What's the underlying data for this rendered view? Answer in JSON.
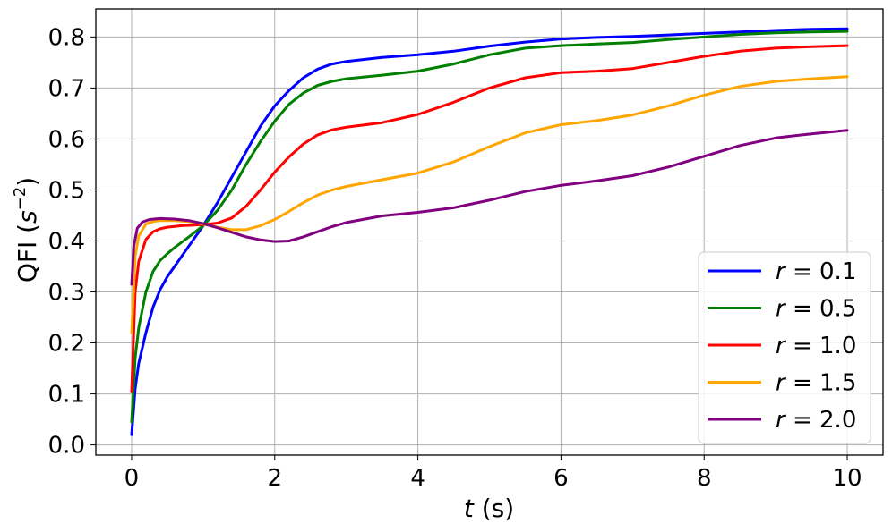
{
  "chart_data": {
    "type": "line",
    "xlabel_var": "t",
    "xlabel_unit": " (s)",
    "ylabel_pre": "QFI (",
    "ylabel_var": "s",
    "ylabel_sup": "−2",
    "ylabel_post": ")",
    "xlim": [
      -0.5,
      10.5
    ],
    "ylim": [
      -0.02,
      0.855
    ],
    "x_ticks": [
      0,
      2,
      4,
      6,
      8,
      10
    ],
    "x_tick_labels": [
      "0",
      "2",
      "4",
      "6",
      "8",
      "10"
    ],
    "y_ticks": [
      0.0,
      0.1,
      0.2,
      0.3,
      0.4,
      0.5,
      0.6,
      0.7,
      0.8
    ],
    "y_tick_labels": [
      "0.0",
      "0.1",
      "0.2",
      "0.3",
      "0.4",
      "0.5",
      "0.6",
      "0.7",
      "0.8"
    ],
    "grid": true,
    "legend_position": "bottom-right",
    "series": [
      {
        "name": "r = 0.1",
        "legend_var": "r",
        "legend_value": "= 0.1",
        "color": "#0000ff",
        "points": [
          [
            0,
            0.02
          ],
          [
            0.05,
            0.11
          ],
          [
            0.1,
            0.16
          ],
          [
            0.2,
            0.22
          ],
          [
            0.3,
            0.27
          ],
          [
            0.4,
            0.305
          ],
          [
            0.5,
            0.33
          ],
          [
            0.6,
            0.35
          ],
          [
            0.8,
            0.39
          ],
          [
            1.0,
            0.43
          ],
          [
            1.2,
            0.475
          ],
          [
            1.4,
            0.525
          ],
          [
            1.6,
            0.575
          ],
          [
            1.8,
            0.625
          ],
          [
            2.0,
            0.665
          ],
          [
            2.2,
            0.695
          ],
          [
            2.4,
            0.72
          ],
          [
            2.6,
            0.737
          ],
          [
            2.8,
            0.747
          ],
          [
            3.0,
            0.752
          ],
          [
            3.5,
            0.76
          ],
          [
            4.0,
            0.765
          ],
          [
            4.5,
            0.772
          ],
          [
            5.0,
            0.782
          ],
          [
            5.5,
            0.79
          ],
          [
            6.0,
            0.796
          ],
          [
            6.5,
            0.799
          ],
          [
            7.0,
            0.801
          ],
          [
            7.5,
            0.804
          ],
          [
            8.0,
            0.807
          ],
          [
            8.5,
            0.81
          ],
          [
            9.0,
            0.813
          ],
          [
            9.5,
            0.815
          ],
          [
            10.0,
            0.816
          ]
        ]
      },
      {
        "name": "r = 0.5",
        "legend_var": "r",
        "legend_value": "= 0.5",
        "color": "#008000",
        "points": [
          [
            0,
            0.045
          ],
          [
            0.05,
            0.17
          ],
          [
            0.1,
            0.23
          ],
          [
            0.2,
            0.3
          ],
          [
            0.3,
            0.34
          ],
          [
            0.4,
            0.362
          ],
          [
            0.5,
            0.375
          ],
          [
            0.6,
            0.387
          ],
          [
            0.8,
            0.408
          ],
          [
            1.0,
            0.43
          ],
          [
            1.2,
            0.46
          ],
          [
            1.4,
            0.5
          ],
          [
            1.6,
            0.55
          ],
          [
            1.8,
            0.595
          ],
          [
            2.0,
            0.635
          ],
          [
            2.2,
            0.668
          ],
          [
            2.4,
            0.69
          ],
          [
            2.6,
            0.705
          ],
          [
            2.8,
            0.713
          ],
          [
            3.0,
            0.718
          ],
          [
            3.5,
            0.725
          ],
          [
            4.0,
            0.733
          ],
          [
            4.5,
            0.747
          ],
          [
            5.0,
            0.765
          ],
          [
            5.5,
            0.778
          ],
          [
            6.0,
            0.783
          ],
          [
            6.5,
            0.786
          ],
          [
            7.0,
            0.789
          ],
          [
            7.5,
            0.795
          ],
          [
            8.0,
            0.8
          ],
          [
            8.5,
            0.805
          ],
          [
            9.0,
            0.808
          ],
          [
            9.5,
            0.81
          ],
          [
            10.0,
            0.811
          ]
        ]
      },
      {
        "name": "r = 1.0",
        "legend_var": "r",
        "legend_value": "= 1.0",
        "color": "#ff0000",
        "points": [
          [
            0,
            0.105
          ],
          [
            0.05,
            0.3
          ],
          [
            0.1,
            0.36
          ],
          [
            0.2,
            0.403
          ],
          [
            0.3,
            0.418
          ],
          [
            0.4,
            0.424
          ],
          [
            0.5,
            0.427
          ],
          [
            0.7,
            0.43
          ],
          [
            1.0,
            0.432
          ],
          [
            1.2,
            0.435
          ],
          [
            1.4,
            0.445
          ],
          [
            1.6,
            0.468
          ],
          [
            1.8,
            0.5
          ],
          [
            2.0,
            0.535
          ],
          [
            2.2,
            0.565
          ],
          [
            2.4,
            0.59
          ],
          [
            2.6,
            0.608
          ],
          [
            2.8,
            0.618
          ],
          [
            3.0,
            0.623
          ],
          [
            3.5,
            0.632
          ],
          [
            4.0,
            0.648
          ],
          [
            4.5,
            0.672
          ],
          [
            5.0,
            0.7
          ],
          [
            5.5,
            0.72
          ],
          [
            6.0,
            0.73
          ],
          [
            6.5,
            0.733
          ],
          [
            7.0,
            0.738
          ],
          [
            7.5,
            0.75
          ],
          [
            8.0,
            0.762
          ],
          [
            8.5,
            0.772
          ],
          [
            9.0,
            0.778
          ],
          [
            9.5,
            0.781
          ],
          [
            10.0,
            0.783
          ]
        ]
      },
      {
        "name": "r = 1.5",
        "legend_var": "r",
        "legend_value": "= 1.5",
        "color": "#ffa500",
        "points": [
          [
            0,
            0.22
          ],
          [
            0.05,
            0.37
          ],
          [
            0.1,
            0.41
          ],
          [
            0.2,
            0.433
          ],
          [
            0.3,
            0.438
          ],
          [
            0.4,
            0.44
          ],
          [
            0.6,
            0.44
          ],
          [
            0.8,
            0.438
          ],
          [
            1.0,
            0.433
          ],
          [
            1.2,
            0.427
          ],
          [
            1.4,
            0.422
          ],
          [
            1.6,
            0.422
          ],
          [
            1.8,
            0.43
          ],
          [
            2.0,
            0.442
          ],
          [
            2.2,
            0.458
          ],
          [
            2.4,
            0.475
          ],
          [
            2.6,
            0.49
          ],
          [
            2.8,
            0.5
          ],
          [
            3.0,
            0.507
          ],
          [
            3.5,
            0.52
          ],
          [
            4.0,
            0.533
          ],
          [
            4.5,
            0.555
          ],
          [
            5.0,
            0.585
          ],
          [
            5.5,
            0.612
          ],
          [
            6.0,
            0.628
          ],
          [
            6.5,
            0.636
          ],
          [
            7.0,
            0.647
          ],
          [
            7.5,
            0.665
          ],
          [
            8.0,
            0.686
          ],
          [
            8.5,
            0.703
          ],
          [
            9.0,
            0.713
          ],
          [
            9.5,
            0.718
          ],
          [
            10.0,
            0.722
          ]
        ]
      },
      {
        "name": "r = 2.0",
        "legend_var": "r",
        "legend_value": "= 2.0",
        "color": "#800080",
        "points": [
          [
            0,
            0.315
          ],
          [
            0.03,
            0.39
          ],
          [
            0.08,
            0.425
          ],
          [
            0.15,
            0.437
          ],
          [
            0.25,
            0.442
          ],
          [
            0.4,
            0.444
          ],
          [
            0.6,
            0.443
          ],
          [
            0.8,
            0.44
          ],
          [
            1.0,
            0.434
          ],
          [
            1.2,
            0.426
          ],
          [
            1.4,
            0.417
          ],
          [
            1.6,
            0.408
          ],
          [
            1.8,
            0.402
          ],
          [
            2.0,
            0.399
          ],
          [
            2.2,
            0.4
          ],
          [
            2.4,
            0.408
          ],
          [
            2.6,
            0.418
          ],
          [
            2.8,
            0.428
          ],
          [
            3.0,
            0.436
          ],
          [
            3.5,
            0.449
          ],
          [
            4.0,
            0.456
          ],
          [
            4.5,
            0.465
          ],
          [
            5.0,
            0.48
          ],
          [
            5.5,
            0.497
          ],
          [
            6.0,
            0.509
          ],
          [
            6.5,
            0.518
          ],
          [
            7.0,
            0.528
          ],
          [
            7.5,
            0.545
          ],
          [
            8.0,
            0.566
          ],
          [
            8.5,
            0.587
          ],
          [
            9.0,
            0.602
          ],
          [
            9.5,
            0.61
          ],
          [
            10.0,
            0.617
          ]
        ]
      }
    ]
  }
}
